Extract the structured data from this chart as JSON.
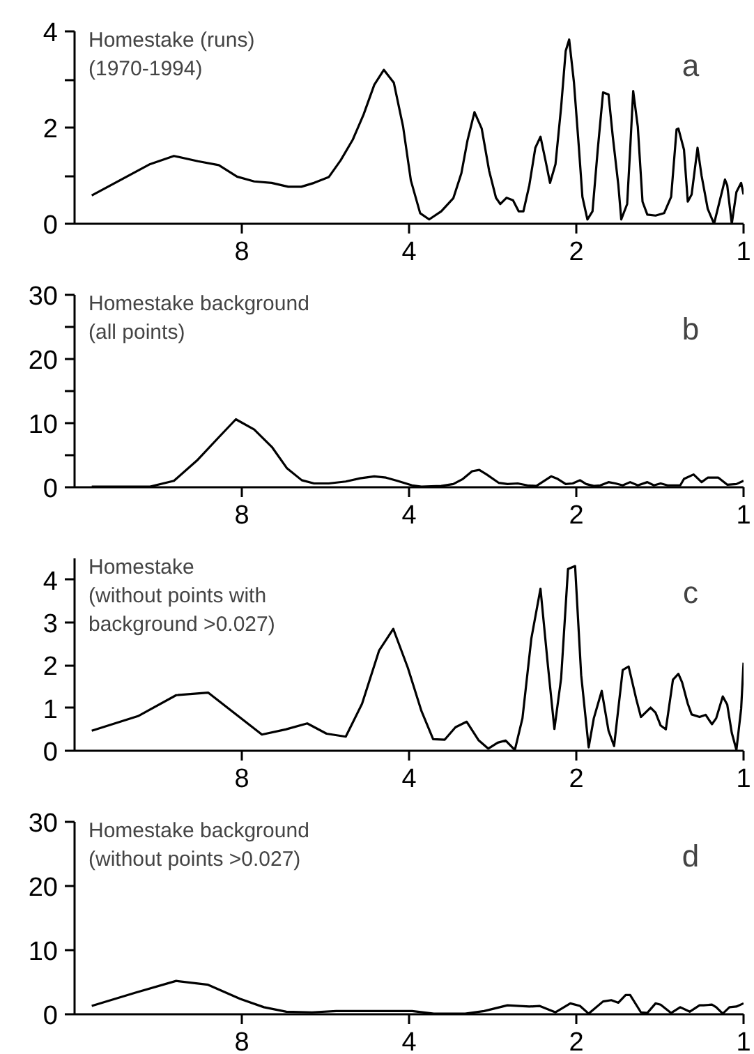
{
  "chart_data": [
    {
      "type": "line",
      "title": "Homestake (runs)\n(1970-1994)",
      "annotations": [
        "a"
      ],
      "log": "x",
      "xlim": [
        16,
        1
      ],
      "xticks": [
        8,
        4,
        2,
        1
      ],
      "ylim": [
        0,
        4
      ],
      "yticks": [
        0,
        {
          "value": 1,
          "label": null
        },
        2,
        {
          "value": 3,
          "label": null
        },
        4
      ],
      "grid": false,
      "x": [
        14.9,
        11.7,
        10.6,
        9.6,
        8.8,
        8.16,
        7.6,
        7.07,
        6.6,
        6.25,
        5.93,
        5.58,
        5.31,
        5.05,
        4.83,
        4.62,
        4.44,
        4.26,
        4.1,
        3.97,
        3.82,
        3.68,
        3.5,
        3.33,
        3.22,
        3.14,
        3.05,
        2.96,
        2.87,
        2.79,
        2.74,
        2.67,
        2.6,
        2.54,
        2.49,
        2.43,
        2.37,
        2.32,
        2.27,
        2.23,
        2.18,
        2.13,
        2.09,
        2.06,
        2.02,
        1.98,
        1.95,
        1.91,
        1.87,
        1.83,
        1.79,
        1.75,
        1.72,
        1.68,
        1.66,
        1.62,
        1.6,
        1.58,
        1.55,
        1.52,
        1.49,
        1.44,
        1.39,
        1.35,
        1.32,
        1.31,
        1.28,
        1.26,
        1.24,
        1.21,
        1.19,
        1.16,
        1.13,
        1.08,
        1.07,
        1.05,
        1.03,
        1.01,
        1.0
      ],
      "series": [
        {
          "color": "#000000",
          "values": [
            0.59,
            1.24,
            1.41,
            1.3,
            1.22,
            0.98,
            0.88,
            0.85,
            0.77,
            0.77,
            0.85,
            0.97,
            1.32,
            1.75,
            2.27,
            2.89,
            3.2,
            2.93,
            2.02,
            0.9,
            0.22,
            0.09,
            0.26,
            0.53,
            1.05,
            1.73,
            2.32,
            1.98,
            1.1,
            0.54,
            0.41,
            0.54,
            0.49,
            0.26,
            0.26,
            0.8,
            1.58,
            1.81,
            1.29,
            0.85,
            1.24,
            2.42,
            3.59,
            3.83,
            2.95,
            1.63,
            0.56,
            0.09,
            0.26,
            1.54,
            2.73,
            2.69,
            1.83,
            0.8,
            0.09,
            0.41,
            1.54,
            2.76,
            2.02,
            0.46,
            0.19,
            0.17,
            0.22,
            0.56,
            1.96,
            1.98,
            1.54,
            0.46,
            0.61,
            1.58,
            1.0,
            0.31,
            0.0,
            0.92,
            0.8,
            0.0,
            0.66,
            0.85,
            0.61
          ]
        }
      ]
    },
    {
      "type": "line",
      "title": "Homestake background\n(all points)",
      "annotations": [
        "b"
      ],
      "log": "x",
      "xlim": [
        16,
        1
      ],
      "xticks": [
        8,
        4,
        2,
        1
      ],
      "ylim": [
        0,
        30
      ],
      "yticks": [
        0,
        {
          "value": 5,
          "label": null
        },
        10,
        {
          "value": 15,
          "label": null
        },
        20,
        {
          "value": 25,
          "label": null
        },
        30
      ],
      "grid": false,
      "x": [
        14.9,
        11.7,
        10.6,
        9.6,
        8.8,
        8.2,
        7.6,
        7.05,
        6.64,
        6.24,
        5.93,
        5.58,
        5.2,
        4.9,
        4.62,
        4.4,
        4.2,
        3.95,
        3.8,
        3.5,
        3.33,
        3.2,
        3.08,
        2.99,
        2.9,
        2.76,
        2.66,
        2.55,
        2.45,
        2.36,
        2.22,
        2.16,
        2.09,
        2.03,
        1.97,
        1.92,
        1.86,
        1.81,
        1.75,
        1.7,
        1.65,
        1.6,
        1.55,
        1.49,
        1.45,
        1.41,
        1.37,
        1.3,
        1.28,
        1.23,
        1.19,
        1.16,
        1.11,
        1.07,
        1.03,
        1.0
      ],
      "series": [
        {
          "color": "#000000",
          "values": [
            0.1,
            0.1,
            1.0,
            4.3,
            7.8,
            10.6,
            9.0,
            6.2,
            3.0,
            1.1,
            0.6,
            0.6,
            0.9,
            1.4,
            1.7,
            1.5,
            1.0,
            0.3,
            0.1,
            0.2,
            0.5,
            1.3,
            2.5,
            2.7,
            2.0,
            0.7,
            0.5,
            0.6,
            0.3,
            0.2,
            1.7,
            1.3,
            0.5,
            0.6,
            1.1,
            0.5,
            0.2,
            0.3,
            0.8,
            0.6,
            0.3,
            0.8,
            0.3,
            0.8,
            0.3,
            0.6,
            0.3,
            0.3,
            1.3,
            2.0,
            0.8,
            1.5,
            1.5,
            0.4,
            0.5,
            1.0
          ]
        }
      ]
    },
    {
      "type": "line",
      "title": "Homestake\n(without points with\nbackground >0.027)",
      "annotations": [
        "c"
      ],
      "log": "x",
      "xlim": [
        16,
        1
      ],
      "xticks": [
        8,
        4,
        2,
        1
      ],
      "ylim": [
        0,
        4.5
      ],
      "yticks": [
        0,
        1,
        2,
        3,
        4
      ],
      "grid": false,
      "x": [
        14.9,
        12.3,
        10.5,
        9.2,
        7.36,
        6.67,
        6.1,
        5.63,
        5.2,
        4.86,
        4.53,
        4.27,
        4.02,
        3.8,
        3.62,
        3.45,
        3.3,
        3.15,
        3.0,
        2.88,
        2.77,
        2.68,
        2.58,
        2.5,
        2.41,
        2.32,
        2.25,
        2.19,
        2.13,
        2.07,
        2.01,
        1.96,
        1.9,
        1.86,
        1.8,
        1.75,
        1.71,
        1.65,
        1.61,
        1.56,
        1.53,
        1.47,
        1.44,
        1.41,
        1.38,
        1.34,
        1.31,
        1.29,
        1.26,
        1.24,
        1.2,
        1.17,
        1.14,
        1.12,
        1.09,
        1.07,
        1.05,
        1.03,
        1.01,
        1.0
      ],
      "series": [
        {
          "color": "#000000",
          "values": [
            0.47,
            0.81,
            1.3,
            1.36,
            0.38,
            0.5,
            0.64,
            0.4,
            0.33,
            1.1,
            2.34,
            2.85,
            1.94,
            0.93,
            0.27,
            0.26,
            0.55,
            0.68,
            0.25,
            0.05,
            0.19,
            0.24,
            0.02,
            0.76,
            2.62,
            3.79,
            2.0,
            0.51,
            1.69,
            4.25,
            4.32,
            1.77,
            0.08,
            0.76,
            1.4,
            0.47,
            0.11,
            1.89,
            1.97,
            1.21,
            0.79,
            1.01,
            0.89,
            0.59,
            0.5,
            1.66,
            1.8,
            1.6,
            1.1,
            0.85,
            0.79,
            0.84,
            0.62,
            0.76,
            1.27,
            1.08,
            0.42,
            0.02,
            0.98,
            2.06
          ]
        }
      ]
    },
    {
      "type": "line",
      "title": "Homestake background\n(without points >0.027)",
      "annotations": [
        "d"
      ],
      "log": "x",
      "xlim": [
        16,
        1
      ],
      "xticks": [
        8,
        4,
        2,
        1
      ],
      "ylim": [
        0,
        30
      ],
      "yticks": [
        0,
        10,
        20,
        30
      ],
      "grid": false,
      "x": [
        14.9,
        12.4,
        10.5,
        9.2,
        8.05,
        7.3,
        6.65,
        5.98,
        5.41,
        4.43,
        3.95,
        3.61,
        3.17,
        2.93,
        2.66,
        2.53,
        2.43,
        2.33,
        2.18,
        2.05,
        1.97,
        1.9,
        1.79,
        1.73,
        1.68,
        1.63,
        1.6,
        1.53,
        1.49,
        1.44,
        1.41,
        1.35,
        1.3,
        1.25,
        1.2,
        1.18,
        1.14,
        1.12,
        1.09,
        1.06,
        1.03,
        1.0
      ],
      "series": [
        {
          "color": "#000000",
          "values": [
            1.3,
            3.4,
            5.2,
            4.6,
            2.4,
            1.1,
            0.4,
            0.3,
            0.5,
            0.5,
            0.5,
            0.1,
            0.1,
            0.5,
            1.4,
            1.3,
            1.2,
            1.3,
            0.3,
            1.7,
            1.3,
            0.1,
            2.0,
            2.2,
            1.8,
            3.0,
            3.0,
            0.3,
            0.2,
            1.7,
            1.5,
            0.2,
            1.1,
            0.4,
            1.4,
            1.4,
            1.5,
            1.1,
            0.1,
            1.1,
            1.2,
            1.7
          ]
        }
      ]
    }
  ]
}
